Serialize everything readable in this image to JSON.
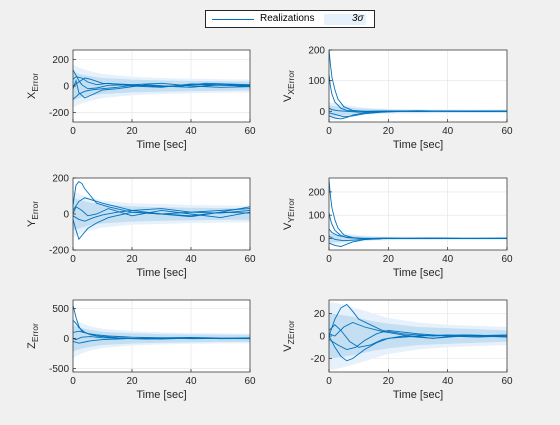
{
  "legend": {
    "realizations_label": "Realizations",
    "sigma_label": "3σ"
  },
  "colors": {
    "line": "#0072bd",
    "band": "#bcd9f0",
    "band_light": "#e6f1fb",
    "axes_bg": "#ffffff",
    "grid": "#e3e3e3",
    "axis": "#262626"
  },
  "chart_data": [
    {
      "type": "line",
      "ylabel_main": "X",
      "ylabel_sub": "Error",
      "xlabel": "Time [sec]",
      "xlim": [
        0,
        60
      ],
      "ylim": [
        -270,
        270
      ],
      "xticks": [
        0,
        20,
        40,
        60
      ],
      "yticks": [
        -200,
        0,
        200
      ],
      "grid": true,
      "sigma_band": {
        "x": [
          0,
          1,
          3,
          6,
          10,
          20,
          30,
          40,
          50,
          60
        ],
        "outer": [
          160,
          150,
          130,
          110,
          90,
          70,
          60,
          55,
          50,
          48
        ],
        "inner": [
          110,
          100,
          85,
          72,
          60,
          48,
          42,
          38,
          35,
          33
        ]
      },
      "series": [
        {
          "x": [
            0,
            1,
            2,
            3,
            5,
            8,
            12,
            20,
            30,
            40,
            50,
            60
          ],
          "values": [
            120,
            80,
            40,
            10,
            -20,
            -15,
            5,
            10,
            -5,
            10,
            5,
            0
          ]
        },
        {
          "x": [
            0,
            1,
            2,
            4,
            6,
            10,
            15,
            20,
            30,
            40,
            50,
            60
          ],
          "values": [
            -100,
            -80,
            -60,
            -40,
            -30,
            -20,
            -10,
            5,
            0,
            -10,
            10,
            5
          ]
        },
        {
          "x": [
            0,
            1,
            3,
            5,
            8,
            12,
            20,
            30,
            40,
            50,
            60
          ],
          "values": [
            50,
            70,
            60,
            30,
            10,
            20,
            0,
            -10,
            15,
            10,
            -5
          ]
        },
        {
          "x": [
            0,
            1,
            2,
            4,
            7,
            10,
            15,
            25,
            35,
            45,
            60
          ],
          "values": [
            -20,
            40,
            -50,
            -90,
            -60,
            -30,
            -20,
            10,
            -5,
            20,
            10
          ]
        },
        {
          "x": [
            0,
            2,
            4,
            6,
            10,
            20,
            30,
            40,
            50,
            60
          ],
          "values": [
            0,
            30,
            60,
            50,
            20,
            10,
            20,
            0,
            -10,
            -5
          ]
        }
      ]
    },
    {
      "type": "line",
      "ylabel_main": "V",
      "ylabel_sub": "XError",
      "xlabel": "Time [sec]",
      "xlim": [
        0,
        60
      ],
      "ylim": [
        -35,
        200
      ],
      "xticks": [
        0,
        20,
        40,
        60
      ],
      "yticks": [
        0,
        100,
        200
      ],
      "grid": true,
      "sigma_band": {
        "x": [
          0,
          1,
          3,
          6,
          10,
          15,
          20,
          30,
          40,
          50,
          60
        ],
        "outer": [
          30,
          28,
          25,
          20,
          14,
          10,
          8,
          7,
          6,
          6,
          6
        ],
        "inner": [
          20,
          18,
          16,
          13,
          9,
          7,
          5,
          4,
          4,
          4,
          4
        ]
      },
      "series": [
        {
          "x": [
            0,
            0.5,
            1,
            2,
            3,
            5,
            8,
            12,
            20,
            30,
            40,
            50,
            60
          ],
          "values": [
            200,
            150,
            110,
            70,
            40,
            15,
            3,
            0,
            1,
            0,
            1,
            0,
            0
          ]
        },
        {
          "x": [
            0,
            0.5,
            1,
            2,
            4,
            6,
            10,
            15,
            20,
            30,
            40,
            60
          ],
          "values": [
            120,
            80,
            55,
            30,
            10,
            3,
            0,
            0,
            1,
            -1,
            0,
            1
          ]
        },
        {
          "x": [
            0,
            2,
            4,
            6,
            8,
            12,
            18,
            25,
            35,
            45,
            60
          ],
          "values": [
            -15,
            -22,
            -25,
            -20,
            -12,
            -5,
            -1,
            0,
            1,
            0,
            0
          ]
        },
        {
          "x": [
            0,
            2,
            5,
            8,
            12,
            18,
            25,
            35,
            45,
            60
          ],
          "values": [
            -5,
            -10,
            -18,
            -15,
            -8,
            -3,
            0,
            1,
            0,
            1
          ]
        },
        {
          "x": [
            0,
            1,
            3,
            6,
            10,
            15,
            20,
            30,
            40,
            50,
            60
          ],
          "values": [
            10,
            5,
            2,
            0,
            -3,
            -1,
            0,
            2,
            0,
            -1,
            0
          ]
        }
      ]
    },
    {
      "type": "line",
      "ylabel_main": "Y",
      "ylabel_sub": "Error",
      "xlabel": "Time [sec]",
      "xlim": [
        0,
        60
      ],
      "ylim": [
        -200,
        200
      ],
      "xticks": [
        0,
        20,
        40,
        60
      ],
      "yticks": [
        -200,
        0,
        200
      ],
      "grid": true,
      "sigma_band": {
        "x": [
          0,
          1,
          3,
          6,
          10,
          20,
          30,
          40,
          50,
          60
        ],
        "outer": [
          130,
          120,
          105,
          90,
          75,
          60,
          55,
          50,
          48,
          46
        ],
        "inner": [
          90,
          85,
          75,
          63,
          52,
          42,
          38,
          35,
          33,
          32
        ]
      },
      "series": [
        {
          "x": [
            0,
            1,
            2,
            3,
            4,
            6,
            8,
            12,
            20,
            30,
            40,
            50,
            60
          ],
          "values": [
            50,
            160,
            180,
            170,
            140,
            100,
            60,
            40,
            10,
            0,
            10,
            20,
            30
          ]
        },
        {
          "x": [
            0,
            1,
            2,
            3,
            5,
            8,
            12,
            20,
            30,
            40,
            50,
            60
          ],
          "values": [
            -30,
            -90,
            -140,
            -120,
            -80,
            -50,
            -20,
            10,
            0,
            -10,
            10,
            40
          ]
        },
        {
          "x": [
            0,
            2,
            4,
            6,
            10,
            15,
            20,
            30,
            40,
            50,
            60
          ],
          "values": [
            20,
            70,
            90,
            80,
            60,
            40,
            20,
            30,
            10,
            5,
            20
          ]
        },
        {
          "x": [
            0,
            2,
            4,
            7,
            10,
            15,
            20,
            30,
            40,
            50,
            60
          ],
          "values": [
            -10,
            -30,
            -40,
            -20,
            -5,
            10,
            20,
            0,
            -15,
            10,
            5
          ]
        },
        {
          "x": [
            0,
            1,
            3,
            5,
            8,
            12,
            20,
            30,
            40,
            50,
            60
          ],
          "values": [
            0,
            40,
            20,
            -10,
            0,
            30,
            -10,
            20,
            0,
            -20,
            10
          ]
        }
      ]
    },
    {
      "type": "line",
      "ylabel_main": "V",
      "ylabel_sub": "YError",
      "xlabel": "Time [sec]",
      "xlim": [
        0,
        60
      ],
      "ylim": [
        -50,
        260
      ],
      "xticks": [
        0,
        20,
        40,
        60
      ],
      "yticks": [
        0,
        100,
        200
      ],
      "grid": true,
      "sigma_band": {
        "x": [
          0,
          1,
          3,
          6,
          10,
          15,
          20,
          30,
          40,
          50,
          60
        ],
        "outer": [
          30,
          28,
          25,
          20,
          14,
          10,
          8,
          7,
          6,
          6,
          6
        ],
        "inner": [
          20,
          18,
          16,
          13,
          9,
          7,
          5,
          4,
          4,
          4,
          4
        ]
      },
      "series": [
        {
          "x": [
            0,
            0.5,
            1,
            2,
            3,
            5,
            8,
            12,
            20,
            30,
            40,
            50,
            60
          ],
          "values": [
            250,
            180,
            130,
            80,
            45,
            15,
            3,
            0,
            1,
            0,
            1,
            0,
            0
          ]
        },
        {
          "x": [
            0,
            0.5,
            1,
            2,
            4,
            6,
            10,
            15,
            20,
            30,
            40,
            60
          ],
          "values": [
            110,
            80,
            60,
            35,
            12,
            4,
            0,
            0,
            1,
            -1,
            0,
            1
          ]
        },
        {
          "x": [
            0,
            2,
            4,
            6,
            8,
            12,
            18,
            25,
            35,
            45,
            60
          ],
          "values": [
            -20,
            -30,
            -35,
            -25,
            -15,
            -5,
            -1,
            0,
            1,
            0,
            0
          ]
        },
        {
          "x": [
            0,
            2,
            5,
            8,
            12,
            18,
            25,
            35,
            45,
            60
          ],
          "values": [
            10,
            -5,
            -10,
            -8,
            -4,
            -1,
            0,
            1,
            0,
            1
          ]
        },
        {
          "x": [
            0,
            1,
            3,
            6,
            10,
            15,
            20,
            30,
            40,
            50,
            60
          ],
          "values": [
            40,
            25,
            12,
            5,
            1,
            0,
            0,
            1,
            0,
            -1,
            0
          ]
        }
      ]
    },
    {
      "type": "line",
      "ylabel_main": "Z",
      "ylabel_sub": "Error",
      "xlabel": "Time [sec]",
      "xlim": [
        0,
        60
      ],
      "ylim": [
        -560,
        640
      ],
      "xticks": [
        0,
        20,
        40,
        60
      ],
      "yticks": [
        -500,
        0,
        500
      ],
      "grid": true,
      "sigma_band": {
        "x": [
          0,
          1,
          3,
          6,
          10,
          20,
          30,
          40,
          50,
          60
        ],
        "outer": [
          340,
          300,
          250,
          200,
          160,
          120,
          100,
          90,
          85,
          80
        ],
        "inner": [
          220,
          200,
          170,
          140,
          110,
          85,
          72,
          65,
          60,
          58
        ]
      },
      "series": [
        {
          "x": [
            0,
            0.5,
            1,
            2,
            3,
            5,
            8,
            12,
            20,
            30,
            40,
            50,
            60
          ],
          "values": [
            550,
            450,
            350,
            200,
            120,
            80,
            60,
            40,
            20,
            10,
            15,
            5,
            0
          ]
        },
        {
          "x": [
            0,
            1,
            2,
            4,
            6,
            10,
            15,
            20,
            30,
            40,
            50,
            60
          ],
          "values": [
            300,
            250,
            180,
            100,
            60,
            30,
            10,
            0,
            -10,
            5,
            0,
            10
          ]
        },
        {
          "x": [
            0,
            2,
            4,
            6,
            10,
            15,
            20,
            30,
            40,
            50,
            60
          ],
          "values": [
            -50,
            -80,
            -60,
            -40,
            -20,
            -10,
            0,
            10,
            -5,
            0,
            5
          ]
        },
        {
          "x": [
            0,
            2,
            5,
            8,
            12,
            18,
            25,
            35,
            45,
            60
          ],
          "values": [
            100,
            120,
            80,
            40,
            20,
            0,
            -10,
            5,
            0,
            -5
          ]
        },
        {
          "x": [
            0,
            1,
            3,
            6,
            10,
            15,
            20,
            30,
            40,
            50,
            60
          ],
          "values": [
            0,
            -20,
            20,
            30,
            10,
            5,
            -5,
            0,
            10,
            -5,
            0
          ]
        }
      ]
    },
    {
      "type": "line",
      "ylabel_main": "V",
      "ylabel_sub": "ZError",
      "xlabel": "Time [sec]",
      "xlim": [
        0,
        60
      ],
      "ylim": [
        -32,
        32
      ],
      "xticks": [
        0,
        20,
        40,
        60
      ],
      "yticks": [
        -20,
        0,
        20
      ],
      "grid": true,
      "sigma_band": {
        "x": [
          0,
          1,
          3,
          6,
          10,
          15,
          20,
          30,
          40,
          50,
          60
        ],
        "outer": [
          30,
          30,
          29,
          27,
          24,
          20,
          16,
          12,
          10,
          9,
          8
        ],
        "inner": [
          20,
          20,
          19,
          18,
          16,
          13,
          11,
          8,
          7,
          6,
          5
        ]
      },
      "series": [
        {
          "x": [
            0,
            2,
            4,
            6,
            8,
            10,
            14,
            18,
            25,
            35,
            45,
            60
          ],
          "values": [
            0,
            15,
            25,
            28,
            22,
            15,
            10,
            5,
            2,
            0,
            1,
            0
          ]
        },
        {
          "x": [
            0,
            2,
            4,
            6,
            8,
            12,
            16,
            20,
            30,
            40,
            50,
            60
          ],
          "values": [
            0,
            -10,
            -18,
            -22,
            -20,
            -12,
            -6,
            -2,
            0,
            1,
            0,
            -1
          ]
        },
        {
          "x": [
            0,
            2,
            4,
            7,
            10,
            14,
            18,
            25,
            35,
            45,
            60
          ],
          "values": [
            5,
            10,
            5,
            -5,
            -10,
            -8,
            -3,
            0,
            -2,
            1,
            0
          ]
        },
        {
          "x": [
            0,
            3,
            6,
            9,
            12,
            16,
            20,
            30,
            40,
            50,
            60
          ],
          "values": [
            -3,
            -8,
            -12,
            -10,
            -4,
            2,
            5,
            2,
            0,
            -1,
            0
          ]
        },
        {
          "x": [
            0,
            2,
            5,
            8,
            12,
            18,
            25,
            35,
            45,
            60
          ],
          "values": [
            2,
            0,
            8,
            12,
            8,
            4,
            1,
            -2,
            0,
            1
          ]
        }
      ]
    }
  ]
}
